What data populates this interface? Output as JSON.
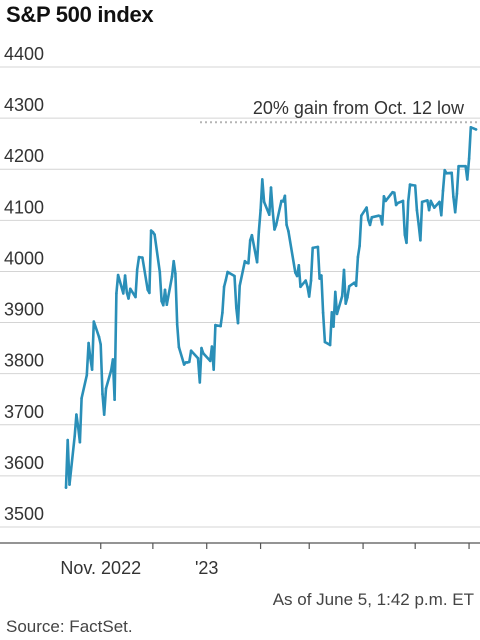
{
  "title": "S&P 500 index",
  "note": "As of June 5, 1:42 p.m. ET",
  "source": "Source: FactSet.",
  "colors": {
    "line": "#2a8fb8",
    "grid": "#d4d4d4",
    "reference": "#b5b5b5",
    "text": "#333333"
  },
  "chart_data": {
    "type": "line",
    "title": "S&P 500 index",
    "xlabel": "",
    "ylabel": "",
    "ylim": [
      3480,
      4420
    ],
    "yticks": [
      3500,
      3600,
      3700,
      3800,
      3900,
      4000,
      4100,
      4200,
      4300,
      4400
    ],
    "xticks": [
      {
        "x": "2022-11-01",
        "label": "Nov. 2022"
      },
      {
        "x": "2022-12-01",
        "label": ""
      },
      {
        "x": "2023-01-01",
        "label": "'23"
      },
      {
        "x": "2023-02-01",
        "label": ""
      },
      {
        "x": "2023-03-01",
        "label": ""
      },
      {
        "x": "2023-04-01",
        "label": ""
      },
      {
        "x": "2023-05-01",
        "label": ""
      },
      {
        "x": "2023-06-01",
        "label": ""
      }
    ],
    "xlim": [
      "2022-10-12",
      "2023-06-05"
    ],
    "grid": "horizontal",
    "reference_line": {
      "y": 4292,
      "label": "20% gain from Oct. 12 low"
    },
    "series": [
      {
        "x": [
          "2022-10-12",
          "2022-10-13",
          "2022-10-14",
          "2022-10-17",
          "2022-10-18",
          "2022-10-19",
          "2022-10-20",
          "2022-10-21",
          "2022-10-24",
          "2022-10-25",
          "2022-10-26",
          "2022-10-27",
          "2022-10-28",
          "2022-10-31",
          "2022-11-01",
          "2022-11-02",
          "2022-11-03",
          "2022-11-04",
          "2022-11-07",
          "2022-11-08",
          "2022-11-09",
          "2022-11-10",
          "2022-11-11",
          "2022-11-14",
          "2022-11-15",
          "2022-11-16",
          "2022-11-17",
          "2022-11-18",
          "2022-11-21",
          "2022-11-22",
          "2022-11-23",
          "2022-11-25",
          "2022-11-28",
          "2022-11-29",
          "2022-11-30",
          "2022-12-01",
          "2022-12-02",
          "2022-12-05",
          "2022-12-06",
          "2022-12-07",
          "2022-12-08",
          "2022-12-09",
          "2022-12-12",
          "2022-12-13",
          "2022-12-14",
          "2022-12-15",
          "2022-12-16",
          "2022-12-19",
          "2022-12-20",
          "2022-12-21",
          "2022-12-22",
          "2022-12-23",
          "2022-12-27",
          "2022-12-28",
          "2022-12-29",
          "2022-12-30",
          "2023-01-03",
          "2023-01-04",
          "2023-01-05",
          "2023-01-06",
          "2023-01-09",
          "2023-01-10",
          "2023-01-11",
          "2023-01-12",
          "2023-01-13",
          "2023-01-17",
          "2023-01-18",
          "2023-01-19",
          "2023-01-20",
          "2023-01-23",
          "2023-01-24",
          "2023-01-25",
          "2023-01-26",
          "2023-01-27",
          "2023-01-30",
          "2023-01-31",
          "2023-02-01",
          "2023-02-02",
          "2023-02-03",
          "2023-02-06",
          "2023-02-07",
          "2023-02-08",
          "2023-02-09",
          "2023-02-10",
          "2023-02-13",
          "2023-02-14",
          "2023-02-15",
          "2023-02-16",
          "2023-02-17",
          "2023-02-21",
          "2023-02-22",
          "2023-02-23",
          "2023-02-24",
          "2023-02-27",
          "2023-02-28",
          "2023-03-01",
          "2023-03-02",
          "2023-03-03",
          "2023-03-06",
          "2023-03-07",
          "2023-03-08",
          "2023-03-09",
          "2023-03-10",
          "2023-03-13",
          "2023-03-14",
          "2023-03-15",
          "2023-03-16",
          "2023-03-17",
          "2023-03-20",
          "2023-03-21",
          "2023-03-22",
          "2023-03-23",
          "2023-03-24",
          "2023-03-27",
          "2023-03-28",
          "2023-03-29",
          "2023-03-30",
          "2023-03-31",
          "2023-04-03",
          "2023-04-04",
          "2023-04-05",
          "2023-04-06",
          "2023-04-10",
          "2023-04-11",
          "2023-04-12",
          "2023-04-13",
          "2023-04-14",
          "2023-04-17",
          "2023-04-18",
          "2023-04-19",
          "2023-04-20",
          "2023-04-21",
          "2023-04-24",
          "2023-04-25",
          "2023-04-26",
          "2023-04-27",
          "2023-04-28",
          "2023-05-01",
          "2023-05-02",
          "2023-05-03",
          "2023-05-04",
          "2023-05-05",
          "2023-05-08",
          "2023-05-09",
          "2023-05-10",
          "2023-05-11",
          "2023-05-12",
          "2023-05-15",
          "2023-05-16",
          "2023-05-17",
          "2023-05-18",
          "2023-05-19",
          "2023-05-22",
          "2023-05-23",
          "2023-05-24",
          "2023-05-25",
          "2023-05-26",
          "2023-05-30",
          "2023-05-31",
          "2023-06-01",
          "2023-06-02",
          "2023-06-05"
        ],
        "values": [
          3577,
          3670,
          3583,
          3678,
          3720,
          3695,
          3666,
          3752,
          3797,
          3860,
          3831,
          3808,
          3902,
          3872,
          3857,
          3760,
          3720,
          3771,
          3807,
          3828,
          3749,
          3957,
          3993,
          3957,
          3992,
          3959,
          3947,
          3966,
          3950,
          4004,
          4028,
          4027,
          3964,
          3958,
          4080,
          4077,
          4072,
          3999,
          3942,
          3934,
          3964,
          3935,
          3990,
          4020,
          3996,
          3896,
          3852,
          3818,
          3822,
          3822,
          3823,
          3845,
          3830,
          3783,
          3850,
          3840,
          3825,
          3853,
          3808,
          3895,
          3893,
          3919,
          3970,
          3983,
          3999,
          3991,
          3929,
          3899,
          3972,
          4020,
          4017,
          4016,
          4061,
          4071,
          4018,
          4077,
          4120,
          4180,
          4136,
          4111,
          4164,
          4118,
          4082,
          4091,
          4138,
          4137,
          4148,
          4091,
          4079,
          3998,
          3991,
          4012,
          3970,
          3982,
          3970,
          3951,
          3982,
          4046,
          4048,
          3986,
          3992,
          3919,
          3862,
          3856,
          3920,
          3892,
          3960,
          3917,
          3952,
          4003,
          3937,
          3949,
          3971,
          3978,
          3972,
          4028,
          4050,
          4109,
          4125,
          4101,
          4091,
          4106,
          4109,
          4108,
          4092,
          4147,
          4138,
          4151,
          4155,
          4154,
          4130,
          4134,
          4138,
          4072,
          4056,
          4136,
          4170,
          4168,
          4120,
          4091,
          4061,
          4136,
          4139,
          4120,
          4138,
          4131,
          4125,
          4136,
          4110,
          4158,
          4198,
          4192,
          4193,
          4146,
          4116,
          4152,
          4206,
          4206,
          4180,
          4221,
          4282,
          4278
        ]
      }
    ]
  }
}
